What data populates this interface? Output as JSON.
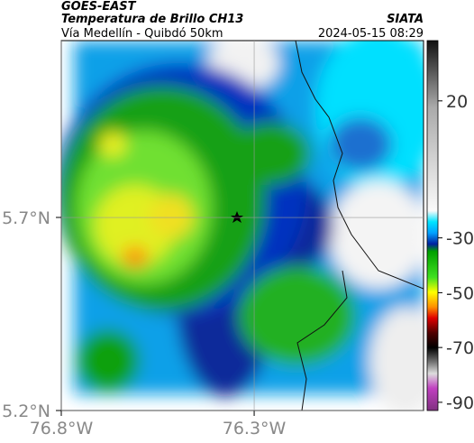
{
  "header": {
    "title": "GOES-EAST",
    "subtitle": "Temperatura de Brillo CH13",
    "source": "SIATA",
    "region": "Vía Medellín - Quibdó 50km",
    "timestamp": "2024-05-15 08:29"
  },
  "map": {
    "xlim": [
      -76.8,
      -75.861
    ],
    "ylim": [
      5.2,
      6.158
    ],
    "xticks": [
      {
        "value": -76.8,
        "label": "76.8°W"
      },
      {
        "value": -76.3,
        "label": "76.3°W"
      }
    ],
    "yticks": [
      {
        "value": 5.2,
        "label": "5.2°N"
      },
      {
        "value": 5.7,
        "label": "5.7°N"
      }
    ]
  },
  "colorbar": {
    "lim": [
      -93,
      42
    ],
    "ticks": [
      20,
      -30,
      -50,
      -70,
      -90
    ]
  }
}
